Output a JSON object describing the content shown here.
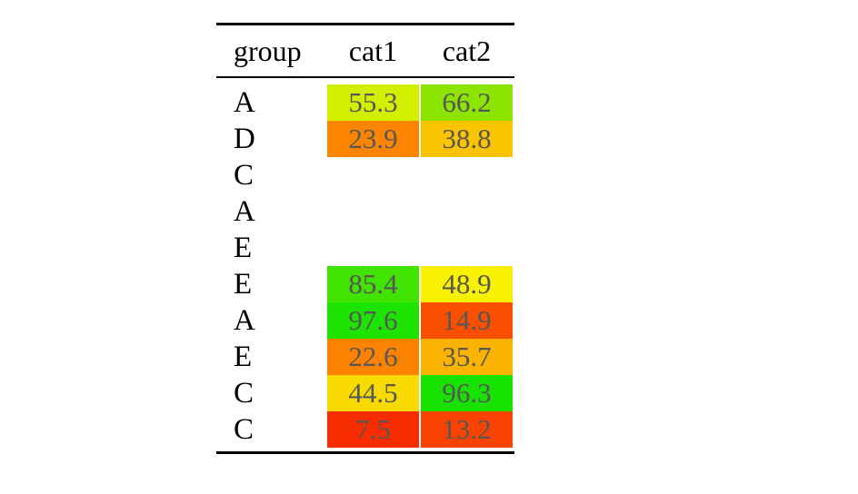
{
  "chart_data": {
    "type": "table",
    "title": "",
    "columns": [
      "group",
      "cat1",
      "cat2"
    ],
    "rows": [
      {
        "group": "A",
        "cat1": {
          "value": "55.3",
          "color": "#d3ef00"
        },
        "cat2": {
          "value": "66.2",
          "color": "#8ce400"
        }
      },
      {
        "group": "D",
        "cat1": {
          "value": "23.9",
          "color": "#fc8500"
        },
        "cat2": {
          "value": "38.8",
          "color": "#fbc400"
        }
      },
      {
        "group": "C",
        "cat1": null,
        "cat2": null
      },
      {
        "group": "A",
        "cat1": null,
        "cat2": null
      },
      {
        "group": "E",
        "cat1": null,
        "cat2": null
      },
      {
        "group": "E",
        "cat1": {
          "value": "85.4",
          "color": "#41e300"
        },
        "cat2": {
          "value": "48.9",
          "color": "#f8f200"
        }
      },
      {
        "group": "A",
        "cat1": {
          "value": "97.6",
          "color": "#1ce400"
        },
        "cat2": {
          "value": "14.9",
          "color": "#fb4f00"
        }
      },
      {
        "group": "E",
        "cat1": {
          "value": "22.6",
          "color": "#fc8300"
        },
        "cat2": {
          "value": "35.7",
          "color": "#fbb300"
        }
      },
      {
        "group": "C",
        "cat1": {
          "value": "44.5",
          "color": "#f9da00"
        },
        "cat2": {
          "value": "96.3",
          "color": "#17e200"
        }
      },
      {
        "group": "C",
        "cat1": {
          "value": "7.5",
          "color": "#f92c00"
        },
        "cat2": {
          "value": "13.2",
          "color": "#fa4300"
        }
      }
    ],
    "layout": {
      "value_range": [
        0,
        100
      ],
      "colormap": "red-yellow-green",
      "value_text_color": "#575757",
      "group_text_color": "#000000",
      "rule_color": "#000000",
      "background_color": "#ffffff",
      "empty_rows": [
        2,
        3,
        4
      ]
    }
  }
}
